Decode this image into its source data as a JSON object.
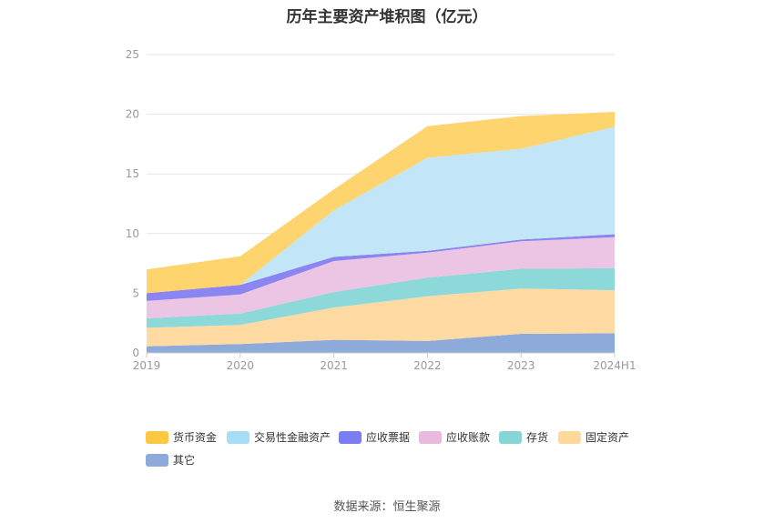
{
  "chart_data": {
    "type": "area",
    "stacked": true,
    "title": "历年主要资产堆积图（亿元）",
    "categories": [
      "2019",
      "2020",
      "2021",
      "2022",
      "2023",
      "2024H1"
    ],
    "ylim": [
      0,
      25
    ],
    "yticks": [
      "0",
      "5",
      "10",
      "15",
      "20",
      "25"
    ],
    "grid": true,
    "legend_position": "bottom",
    "series": [
      {
        "name": "其它",
        "color": "#8eaadb",
        "values": [
          0.55,
          0.75,
          1.1,
          1.0,
          1.6,
          1.65
        ]
      },
      {
        "name": "固定资产",
        "color": "#ffdba3",
        "values": [
          1.55,
          1.6,
          2.7,
          3.75,
          3.8,
          3.6
        ]
      },
      {
        "name": "存货",
        "color": "#8dd8d8",
        "values": [
          0.8,
          0.95,
          1.3,
          1.55,
          1.65,
          1.85
        ]
      },
      {
        "name": "应收账款",
        "color": "#ebc5e3",
        "values": [
          1.45,
          1.6,
          2.6,
          2.1,
          2.3,
          2.6
        ]
      },
      {
        "name": "应收票据",
        "color": "#8a85f0",
        "values": [
          0.65,
          0.8,
          0.35,
          0.15,
          0.15,
          0.25
        ]
      },
      {
        "name": "交易性金融资产",
        "color": "#c2e6f8",
        "values": [
          0.0,
          0.0,
          3.9,
          7.8,
          7.6,
          9.0
        ]
      },
      {
        "name": "货币资金",
        "color": "#fdd46e",
        "values": [
          2.0,
          2.4,
          1.75,
          2.65,
          2.75,
          1.25
        ]
      }
    ]
  },
  "legend": [
    {
      "label": "货币资金",
      "color": "#fbc842"
    },
    {
      "label": "交易性金融资产",
      "color": "#a8ddf7"
    },
    {
      "label": "应收票据",
      "color": "#7b7ef0"
    },
    {
      "label": "应收账款",
      "color": "#e9b9de"
    },
    {
      "label": "存货",
      "color": "#86d6d6"
    },
    {
      "label": "固定资产",
      "color": "#ffd89b"
    },
    {
      "label": "其它",
      "color": "#8eaadb"
    }
  ],
  "source": "数据来源：恒生聚源"
}
